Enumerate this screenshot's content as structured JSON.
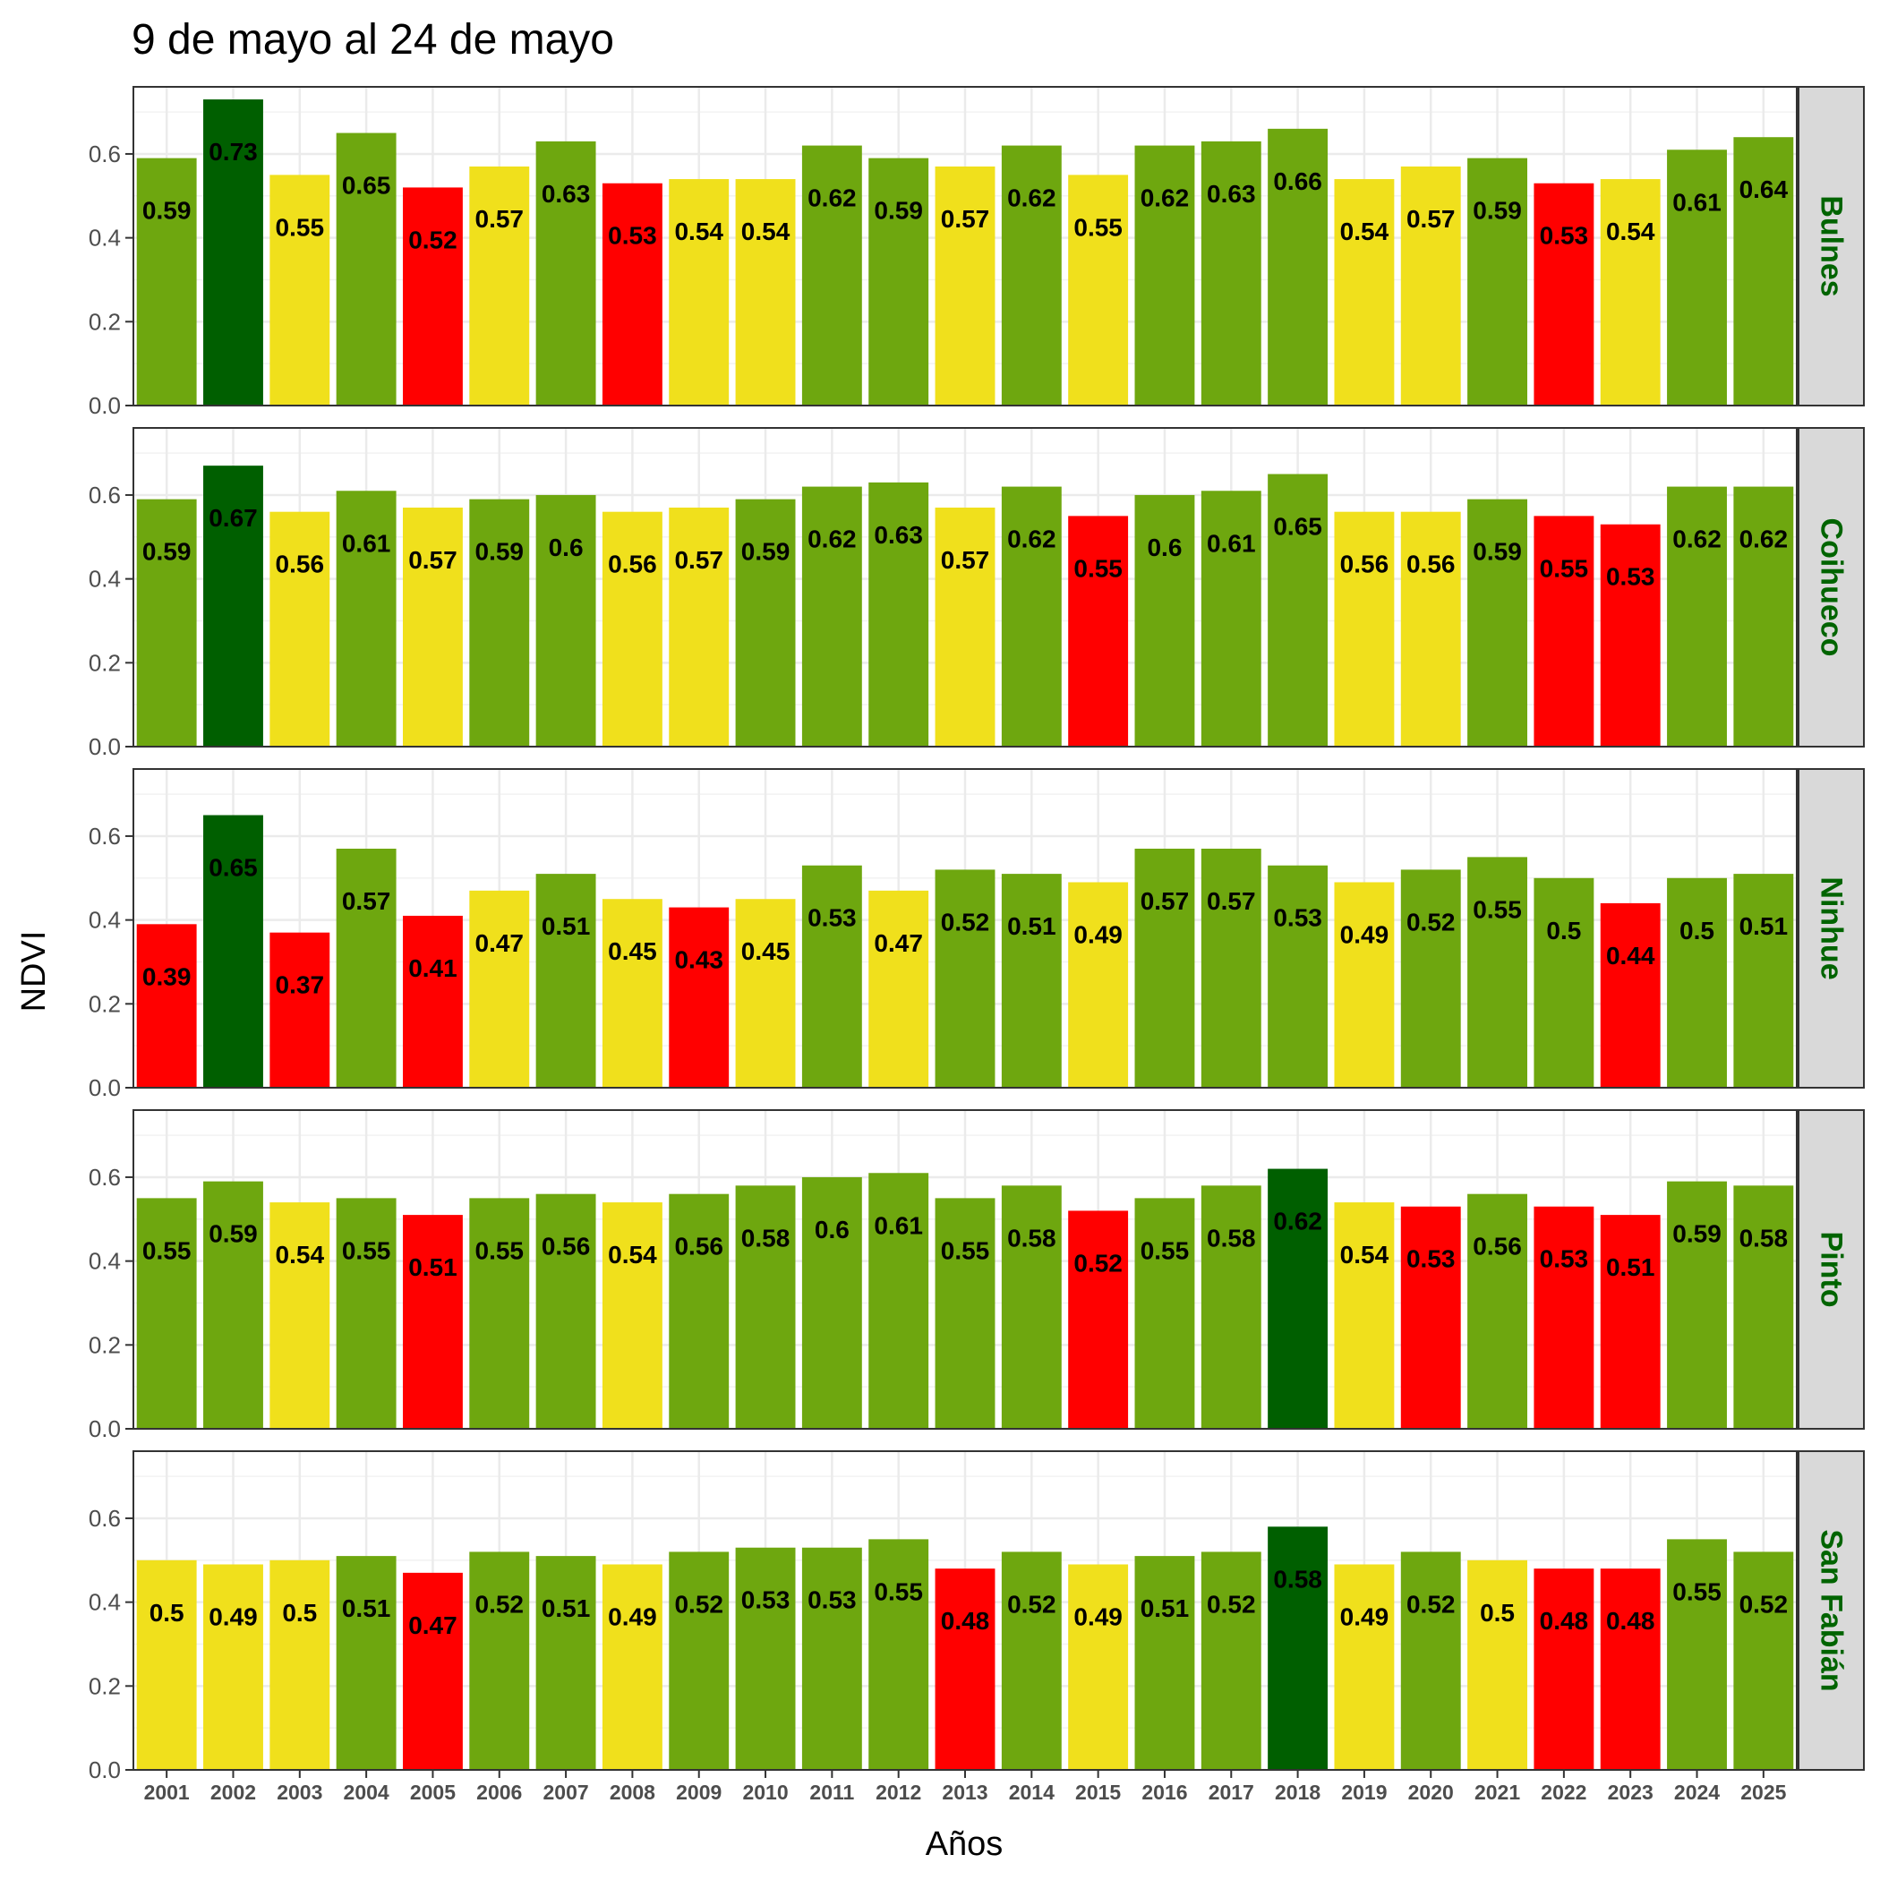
{
  "chart_data": {
    "type": "bar",
    "title": "9 de mayo al 24 de mayo",
    "xlabel": "Años",
    "ylabel": "NDVI",
    "ylim": [
      0,
      0.76
    ],
    "yticks": [
      "0.0",
      "0.2",
      "0.4",
      "0.6"
    ],
    "ytick_values": [
      0,
      0.2,
      0.4,
      0.6
    ],
    "grid": true,
    "facet_label_color": "#006400",
    "categories": [
      "2001",
      "2002",
      "2003",
      "2004",
      "2005",
      "2006",
      "2007",
      "2008",
      "2009",
      "2010",
      "2011",
      "2012",
      "2013",
      "2014",
      "2015",
      "2016",
      "2017",
      "2018",
      "2019",
      "2020",
      "2021",
      "2022",
      "2023",
      "2024",
      "2025"
    ],
    "legend": "none",
    "class_colors": {
      "max": "#005f00",
      "high": "#6ea70f",
      "mid": "#f0e01c",
      "low": "#ff0000"
    },
    "panels": [
      {
        "name": "Bulnes",
        "values": [
          0.59,
          0.73,
          0.55,
          0.65,
          0.52,
          0.57,
          0.63,
          0.53,
          0.54,
          0.54,
          0.62,
          0.59,
          0.57,
          0.62,
          0.55,
          0.62,
          0.63,
          0.66,
          0.54,
          0.57,
          0.59,
          0.53,
          0.54,
          0.61,
          0.64
        ],
        "labels": [
          "0.59",
          "0.73",
          "0.55",
          "0.65",
          "0.52",
          "0.57",
          "0.63",
          "0.53",
          "0.54",
          "0.54",
          "0.62",
          "0.59",
          "0.57",
          "0.62",
          "0.55",
          "0.62",
          "0.63",
          "0.66",
          "0.54",
          "0.57",
          "0.59",
          "0.53",
          "0.54",
          "0.61",
          "0.64"
        ],
        "classes": [
          "high",
          "max",
          "mid",
          "high",
          "low",
          "mid",
          "high",
          "low",
          "mid",
          "mid",
          "high",
          "high",
          "mid",
          "high",
          "mid",
          "high",
          "high",
          "high",
          "mid",
          "mid",
          "high",
          "low",
          "mid",
          "high",
          "high"
        ]
      },
      {
        "name": "Coihueco",
        "values": [
          0.59,
          0.67,
          0.56,
          0.61,
          0.57,
          0.59,
          0.6,
          0.56,
          0.57,
          0.59,
          0.62,
          0.63,
          0.57,
          0.62,
          0.55,
          0.6,
          0.61,
          0.65,
          0.56,
          0.56,
          0.59,
          0.55,
          0.53,
          0.62,
          0.62
        ],
        "labels": [
          "0.59",
          "0.67",
          "0.56",
          "0.61",
          "0.57",
          "0.59",
          "0.6",
          "0.56",
          "0.57",
          "0.59",
          "0.62",
          "0.63",
          "0.57",
          "0.62",
          "0.55",
          "0.6",
          "0.61",
          "0.65",
          "0.56",
          "0.56",
          "0.59",
          "0.55",
          "0.53",
          "0.62",
          "0.62"
        ],
        "classes": [
          "high",
          "max",
          "mid",
          "high",
          "mid",
          "high",
          "high",
          "mid",
          "mid",
          "high",
          "high",
          "high",
          "mid",
          "high",
          "low",
          "high",
          "high",
          "high",
          "mid",
          "mid",
          "high",
          "low",
          "low",
          "high",
          "high"
        ]
      },
      {
        "name": "Ninhue",
        "values": [
          0.39,
          0.65,
          0.37,
          0.57,
          0.41,
          0.47,
          0.51,
          0.45,
          0.43,
          0.45,
          0.53,
          0.47,
          0.52,
          0.51,
          0.49,
          0.57,
          0.57,
          0.53,
          0.49,
          0.52,
          0.55,
          0.5,
          0.44,
          0.5,
          0.51
        ],
        "labels": [
          "0.39",
          "0.65",
          "0.37",
          "0.57",
          "0.41",
          "0.47",
          "0.51",
          "0.45",
          "0.43",
          "0.45",
          "0.53",
          "0.47",
          "0.52",
          "0.51",
          "0.49",
          "0.57",
          "0.57",
          "0.53",
          "0.49",
          "0.52",
          "0.55",
          "0.5",
          "0.44",
          "0.5",
          "0.51"
        ],
        "classes": [
          "low",
          "max",
          "low",
          "high",
          "low",
          "mid",
          "high",
          "mid",
          "low",
          "mid",
          "high",
          "mid",
          "high",
          "high",
          "mid",
          "high",
          "high",
          "high",
          "mid",
          "high",
          "high",
          "high",
          "low",
          "high",
          "high"
        ]
      },
      {
        "name": "Pinto",
        "values": [
          0.55,
          0.59,
          0.54,
          0.55,
          0.51,
          0.55,
          0.56,
          0.54,
          0.56,
          0.58,
          0.6,
          0.61,
          0.55,
          0.58,
          0.52,
          0.55,
          0.58,
          0.62,
          0.54,
          0.53,
          0.56,
          0.53,
          0.51,
          0.59,
          0.58
        ],
        "labels": [
          "0.55",
          "0.59",
          "0.54",
          "0.55",
          "0.51",
          "0.55",
          "0.56",
          "0.54",
          "0.56",
          "0.58",
          "0.6",
          "0.61",
          "0.55",
          "0.58",
          "0.52",
          "0.55",
          "0.58",
          "0.62",
          "0.54",
          "0.53",
          "0.56",
          "0.53",
          "0.51",
          "0.59",
          "0.58"
        ],
        "classes": [
          "high",
          "high",
          "mid",
          "high",
          "low",
          "high",
          "high",
          "mid",
          "high",
          "high",
          "high",
          "high",
          "high",
          "high",
          "low",
          "high",
          "high",
          "max",
          "mid",
          "low",
          "high",
          "low",
          "low",
          "high",
          "high"
        ]
      },
      {
        "name": "San Fabián",
        "values": [
          0.5,
          0.49,
          0.5,
          0.51,
          0.47,
          0.52,
          0.51,
          0.49,
          0.52,
          0.53,
          0.53,
          0.55,
          0.48,
          0.52,
          0.49,
          0.51,
          0.52,
          0.58,
          0.49,
          0.52,
          0.5,
          0.48,
          0.48,
          0.55,
          0.52
        ],
        "labels": [
          "0.5",
          "0.49",
          "0.5",
          "0.51",
          "0.47",
          "0.52",
          "0.51",
          "0.49",
          "0.52",
          "0.53",
          "0.53",
          "0.55",
          "0.48",
          "0.52",
          "0.49",
          "0.51",
          "0.52",
          "0.58",
          "0.49",
          "0.52",
          "0.5",
          "0.48",
          "0.48",
          "0.55",
          "0.52"
        ],
        "classes": [
          "mid",
          "mid",
          "mid",
          "high",
          "low",
          "high",
          "high",
          "mid",
          "high",
          "high",
          "high",
          "high",
          "low",
          "high",
          "mid",
          "high",
          "high",
          "max",
          "mid",
          "high",
          "mid",
          "low",
          "low",
          "high",
          "high"
        ]
      }
    ]
  }
}
